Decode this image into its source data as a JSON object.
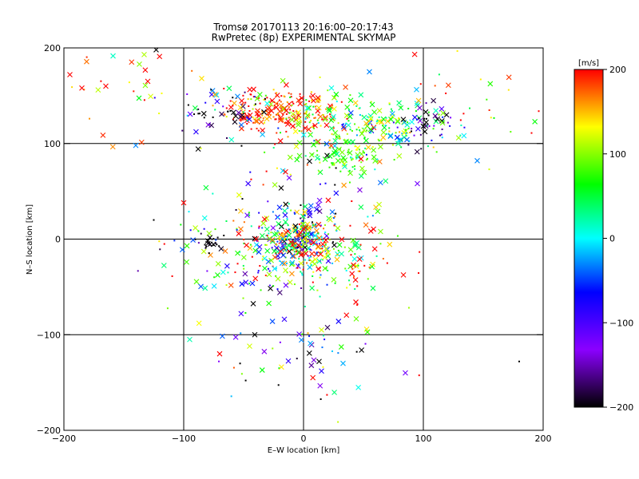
{
  "chart_data": {
    "type": "scatter",
    "title": "Tromsø 20170113 20:16:00–20:17:43",
    "subtitle": "RwPretec (8p) EXPERIMENTAL SKYMAP",
    "xlabel": "E–W location [km]",
    "ylabel": "N–S location [km]",
    "xlim": [
      -200,
      200
    ],
    "ylim": [
      -200,
      200
    ],
    "xticks": [
      -200,
      -100,
      0,
      100,
      200
    ],
    "yticks": [
      -200,
      -100,
      0,
      100,
      200
    ],
    "grid_lines": [
      -100,
      0,
      100
    ],
    "colorbar": {
      "label": "[m/s]",
      "range": [
        -200,
        200
      ],
      "ticks": [
        200,
        100,
        0,
        -100,
        -200
      ],
      "colors": [
        "#000000",
        "#8b00ff",
        "#0000ff",
        "#00ffff",
        "#00ff00",
        "#ffff00",
        "#ff0000"
      ]
    },
    "marker_types": [
      "cross",
      "dot"
    ],
    "clusters": [
      {
        "cx": -5,
        "cy": 0,
        "sx": 14,
        "sy": 12,
        "n": 220,
        "v_mean": 40,
        "v_sd": 140
      },
      {
        "cx": -5,
        "cy": -15,
        "sx": 30,
        "sy": 22,
        "n": 140,
        "v_mean": 80,
        "v_sd": 110
      },
      {
        "cx": -60,
        "cy": -20,
        "sx": 35,
        "sy": 30,
        "n": 90,
        "v_mean": 50,
        "v_sd": 130
      },
      {
        "cx": -80,
        "cy": -5,
        "sx": 6,
        "sy": 5,
        "n": 18,
        "v_mean": -200,
        "v_sd": 8
      },
      {
        "cx": 35,
        "cy": -25,
        "sx": 25,
        "sy": 25,
        "n": 70,
        "v_mean": 130,
        "v_sd": 90
      },
      {
        "cx": -30,
        "cy": 135,
        "sx": 20,
        "sy": 12,
        "n": 150,
        "v_mean": 190,
        "v_sd": 50
      },
      {
        "cx": 5,
        "cy": 130,
        "sx": 18,
        "sy": 14,
        "n": 100,
        "v_mean": 150,
        "v_sd": 60
      },
      {
        "cx": 60,
        "cy": 120,
        "sx": 30,
        "sy": 14,
        "n": 170,
        "v_mean": 50,
        "v_sd": 60
      },
      {
        "cx": 35,
        "cy": 85,
        "sx": 18,
        "sy": 10,
        "n": 90,
        "v_mean": 80,
        "v_sd": 30
      },
      {
        "cx": -70,
        "cy": 130,
        "sx": 18,
        "sy": 14,
        "n": 60,
        "v_mean": -90,
        "v_sd": 110
      },
      {
        "cx": 100,
        "cy": 120,
        "sx": 12,
        "sy": 12,
        "n": 35,
        "v_mean": -170,
        "v_sd": 50
      },
      {
        "cx": -150,
        "cy": 160,
        "sx": 40,
        "sy": 30,
        "n": 30,
        "v_mean": 170,
        "v_sd": 60
      },
      {
        "cx": 0,
        "cy": 40,
        "sx": 35,
        "sy": 30,
        "n": 70,
        "v_mean": 20,
        "v_sd": 160
      },
      {
        "cx": 5,
        "cy": -125,
        "sx": 35,
        "sy": 25,
        "n": 50,
        "v_mean": -40,
        "v_sd": 150
      },
      {
        "cx": 150,
        "cy": 150,
        "sx": 35,
        "sy": 30,
        "n": 25,
        "v_mean": 120,
        "v_sd": 100
      }
    ],
    "highlight_points": [
      {
        "x": -123,
        "y": 198,
        "v": -200,
        "m": "x"
      },
      {
        "x": -137,
        "y": 183,
        "v": 100,
        "m": "x"
      },
      {
        "x": -133,
        "y": 193,
        "v": 110,
        "m": "x"
      },
      {
        "x": -195,
        "y": 172,
        "v": 200,
        "m": "x"
      },
      {
        "x": -185,
        "y": 158,
        "v": 200,
        "m": "x"
      },
      {
        "x": -165,
        "y": 160,
        "v": 200,
        "m": "x"
      },
      {
        "x": 102,
        "y": 133,
        "v": -200,
        "m": "x"
      },
      {
        "x": 100,
        "y": 118,
        "v": -200,
        "m": "x"
      },
      {
        "x": -140,
        "y": 98,
        "v": -30,
        "m": "x"
      },
      {
        "x": 95,
        "y": 58,
        "v": -120,
        "m": "x"
      },
      {
        "x": -95,
        "y": -105,
        "v": 20,
        "m": "x"
      },
      {
        "x": -70,
        "y": -120,
        "v": 200,
        "m": "x"
      },
      {
        "x": -45,
        "y": -112,
        "v": 120,
        "m": "x"
      },
      {
        "x": 13,
        "y": -128,
        "v": -200,
        "m": "x"
      },
      {
        "x": 15,
        "y": -138,
        "v": -80,
        "m": "x"
      },
      {
        "x": 33,
        "y": -130,
        "v": -20,
        "m": "x"
      },
      {
        "x": 85,
        "y": -140,
        "v": -120,
        "m": "x"
      },
      {
        "x": 180,
        "y": -128,
        "v": -200,
        "m": "dot"
      },
      {
        "x": 15,
        "y": -95,
        "v": 120,
        "m": "x"
      },
      {
        "x": -100,
        "y": 38,
        "v": 200,
        "m": "x"
      },
      {
        "x": -125,
        "y": 20,
        "v": -200,
        "m": "dot"
      },
      {
        "x": 155,
        "y": 73,
        "v": 120,
        "m": "dot"
      },
      {
        "x": 145,
        "y": 82,
        "v": -30,
        "m": "x"
      },
      {
        "x": -130,
        "y": 165,
        "v": 200,
        "m": "x"
      },
      {
        "x": -85,
        "y": 168,
        "v": 140,
        "m": "x"
      },
      {
        "x": 55,
        "y": 175,
        "v": -30,
        "m": "x"
      }
    ]
  }
}
